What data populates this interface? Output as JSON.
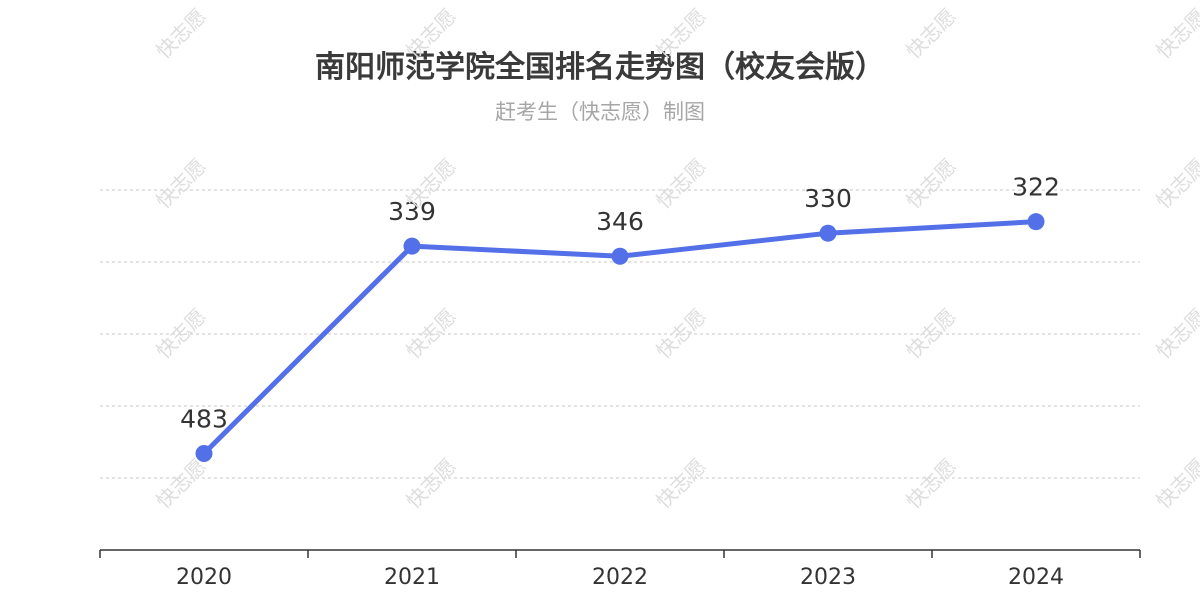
{
  "header": {
    "title": "南阳师范学院全国排名走势图（校友会版）",
    "subtitle": "赶考生（快志愿）制图"
  },
  "watermark": {
    "text": "快志愿"
  },
  "colors": {
    "series": "#5470e8",
    "grid": "#c8c8c8",
    "axis": "#333333",
    "text": "#333333"
  },
  "chart_data": {
    "type": "line",
    "title": "南阳师范学院全国排名走势图（校友会版）",
    "subtitle": "赶考生（快志愿）制图",
    "categories": [
      "2020",
      "2021",
      "2022",
      "2023",
      "2024"
    ],
    "series": [
      {
        "values": [
          483,
          339,
          346,
          330,
          322
        ]
      }
    ],
    "y_inverted": true,
    "ylim": [
      300,
      500
    ],
    "y_grid_values": [
      300,
      350,
      400,
      450,
      500
    ],
    "y_tick_labels_visible": false,
    "grid": true,
    "legend": "none",
    "data_labels": true
  }
}
